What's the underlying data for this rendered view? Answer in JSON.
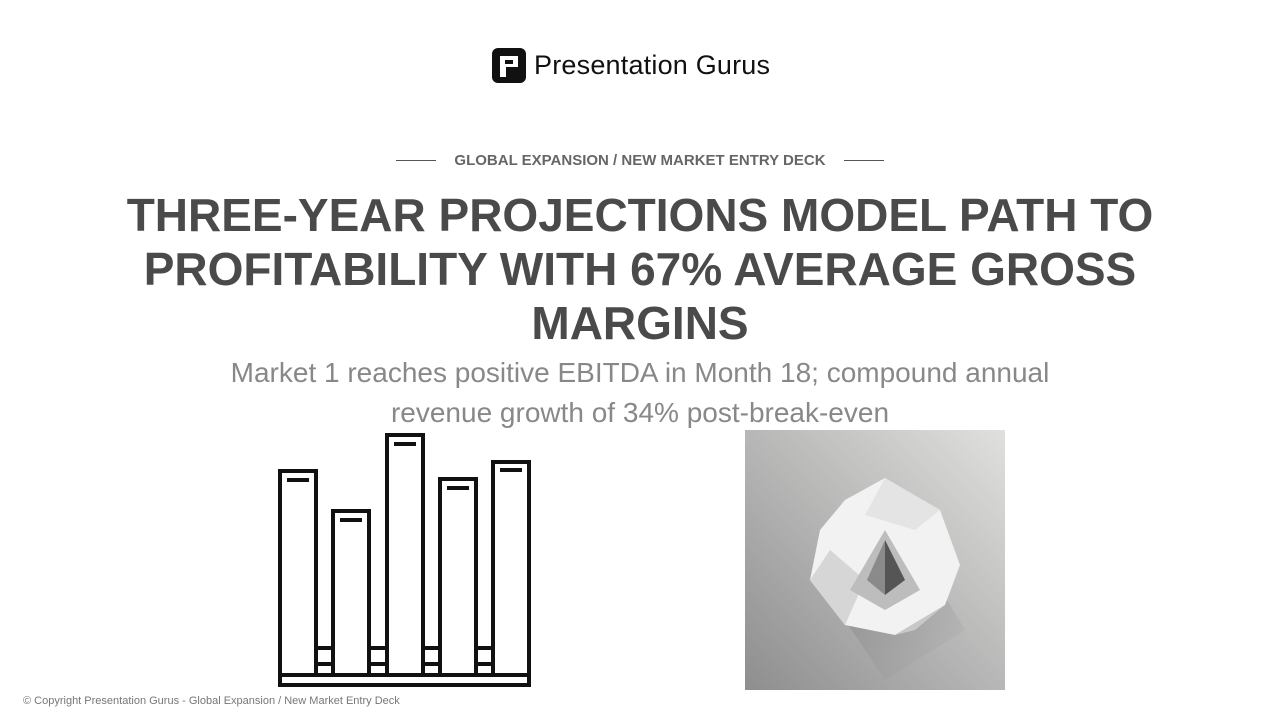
{
  "brand": {
    "name": "Presentation Gurus"
  },
  "slide": {
    "eyebrow": "GLOBAL EXPANSION / NEW MARKET ENTRY DECK",
    "title": "THREE-YEAR PROJECTIONS MODEL PATH TO PROFITABILITY WITH 67% AVERAGE GROSS MARGINS",
    "subtitle": "Market 1 reaches positive EBITDA in Month 18; compound annual revenue growth of 34% post-break-even"
  },
  "footer": {
    "copyright": "© Copyright Presentation Gurus - Global Expansion / New Market Entry Deck"
  }
}
